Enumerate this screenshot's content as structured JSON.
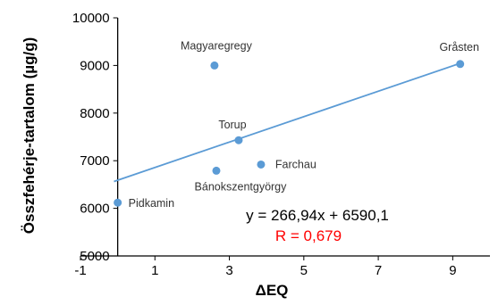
{
  "chart_data": {
    "type": "scatter",
    "xlabel": "ΔEQ",
    "ylabel": "Összfehérje-tartalom (µg/g)",
    "xlim": [
      -1,
      10
    ],
    "ylim": [
      5000,
      10000
    ],
    "x_ticks": [
      "-1",
      "1",
      "3",
      "5",
      "7",
      "9"
    ],
    "x_tick_values": [
      -1,
      1,
      3,
      5,
      7,
      9
    ],
    "y_ticks": [
      "5000",
      "6000",
      "7000",
      "8000",
      "9000",
      "10000"
    ],
    "y_tick_values": [
      5000,
      6000,
      7000,
      8000,
      9000,
      10000
    ],
    "grid": false,
    "points": [
      {
        "label": "Pidkamin",
        "x": 0.0,
        "y": 6120
      },
      {
        "label": "Bánokszentgyörgy",
        "x": 2.65,
        "y": 6790
      },
      {
        "label": "Torup",
        "x": 3.25,
        "y": 7430
      },
      {
        "label": "Farchau",
        "x": 3.85,
        "y": 6920
      },
      {
        "label": "Magyaregregy",
        "x": 2.6,
        "y": 9000
      },
      {
        "label": "Gråsten",
        "x": 9.2,
        "y": 9030
      }
    ],
    "trendline": {
      "slope": 266.94,
      "intercept": 6590.1,
      "x_range": [
        -0.1,
        9.2
      ]
    },
    "equation": "y = 266,94x + 6590,1",
    "r_label": "R = 0,679",
    "colors": {
      "points": "#5b9bd5",
      "trendline": "#5b9bd5",
      "r_text": "#ff0000",
      "axis": "#000000"
    }
  }
}
